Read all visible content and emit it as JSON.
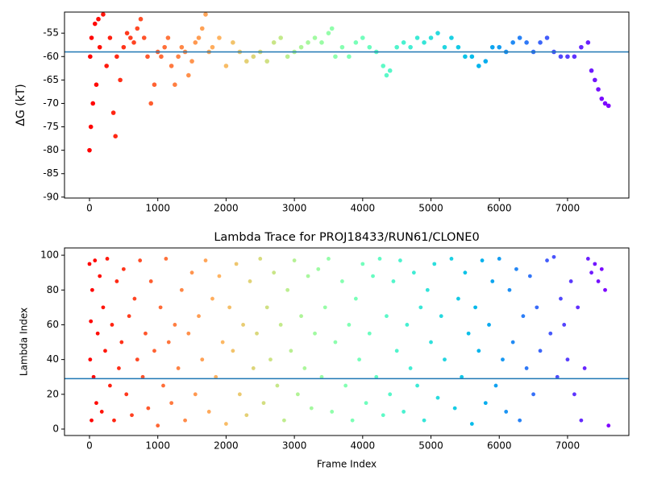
{
  "chart_data": [
    {
      "type": "scatter",
      "ylabel": "ΔG (kT)",
      "colormap": "rainbow_r",
      "hline": -59,
      "hline_color": "#1f77b4",
      "xlim": [
        -366,
        7898
      ],
      "ylim": [
        -90.2,
        -50.5
      ],
      "xticks": [
        0,
        1000,
        2000,
        3000,
        4000,
        5000,
        6000,
        7000
      ],
      "yticks": [
        -90,
        -85,
        -80,
        -75,
        -70,
        -65,
        -60,
        -55
      ],
      "x": [
        0,
        10,
        20,
        30,
        50,
        80,
        100,
        130,
        150,
        200,
        250,
        300,
        350,
        380,
        400,
        450,
        500,
        550,
        600,
        650,
        700,
        750,
        800,
        850,
        900,
        950,
        1000,
        1050,
        1100,
        1150,
        1200,
        1250,
        1300,
        1350,
        1400,
        1450,
        1500,
        1550,
        1600,
        1650,
        1700,
        1750,
        1800,
        1900,
        2000,
        2100,
        2200,
        2300,
        2400,
        2500,
        2600,
        2700,
        2800,
        2900,
        3000,
        3100,
        3200,
        3300,
        3400,
        3500,
        3550,
        3600,
        3700,
        3800,
        3900,
        4000,
        4100,
        4200,
        4300,
        4350,
        4400,
        4500,
        4600,
        4700,
        4800,
        4900,
        5000,
        5100,
        5200,
        5300,
        5400,
        5500,
        5600,
        5700,
        5800,
        5900,
        6000,
        6100,
        6200,
        6300,
        6400,
        6500,
        6600,
        6700,
        6800,
        6900,
        7000,
        7100,
        7200,
        7300,
        7350,
        7400,
        7450,
        7500,
        7550,
        7600
      ],
      "y": [
        -80,
        -60,
        -75,
        -56,
        -70,
        -53,
        -66,
        -52,
        -58,
        -51,
        -62,
        -56,
        -72,
        -77,
        -60,
        -65,
        -58,
        -55,
        -56,
        -57,
        -54,
        -52,
        -56,
        -60,
        -70,
        -66,
        -59,
        -60,
        -58,
        -56,
        -62,
        -66,
        -60,
        -58,
        -59,
        -64,
        -61,
        -57,
        -56,
        -54,
        -51,
        -59,
        -58,
        -56,
        -62,
        -57,
        -59,
        -61,
        -60,
        -59,
        -61,
        -57,
        -56,
        -60,
        -59,
        -58,
        -57,
        -56,
        -57,
        -55,
        -54,
        -60,
        -58,
        -60,
        -57,
        -56,
        -58,
        -59,
        -62,
        -64,
        -63,
        -58,
        -57,
        -58,
        -56,
        -57,
        -56,
        -55,
        -58,
        -56,
        -58,
        -60,
        -60,
        -62,
        -61,
        -58,
        -58,
        -59,
        -57,
        -56,
        -57,
        -59,
        -57,
        -56,
        -59,
        -60,
        -60,
        -60,
        -58,
        -57,
        -63,
        -65,
        -67,
        -69,
        -70,
        -70.5
      ]
    },
    {
      "type": "scatter",
      "title": "Lambda Trace for PROJ18433/RUN61/CLONE0",
      "xlabel": "Frame Index",
      "ylabel": "Lambda Index",
      "colormap": "rainbow_r",
      "hline": 29,
      "hline_color": "#1f77b4",
      "xlim": [
        -366,
        7898
      ],
      "ylim": [
        -3.7,
        104.2
      ],
      "xticks": [
        0,
        1000,
        2000,
        3000,
        4000,
        5000,
        6000,
        7000
      ],
      "yticks": [
        0,
        20,
        40,
        60,
        80,
        100
      ],
      "x": [
        0,
        10,
        20,
        30,
        40,
        60,
        80,
        100,
        120,
        150,
        180,
        200,
        230,
        260,
        300,
        330,
        360,
        400,
        430,
        470,
        500,
        540,
        580,
        620,
        660,
        700,
        740,
        780,
        820,
        860,
        900,
        950,
        1000,
        1040,
        1080,
        1120,
        1160,
        1200,
        1250,
        1300,
        1350,
        1400,
        1450,
        1500,
        1550,
        1600,
        1650,
        1700,
        1750,
        1800,
        1850,
        1900,
        1950,
        2000,
        2050,
        2100,
        2150,
        2200,
        2250,
        2300,
        2350,
        2400,
        2450,
        2500,
        2550,
        2600,
        2650,
        2700,
        2750,
        2800,
        2850,
        2900,
        2950,
        3000,
        3050,
        3100,
        3150,
        3200,
        3250,
        3300,
        3350,
        3400,
        3450,
        3500,
        3550,
        3600,
        3700,
        3750,
        3800,
        3850,
        3900,
        3950,
        4000,
        4050,
        4100,
        4150,
        4200,
        4250,
        4300,
        4350,
        4400,
        4450,
        4500,
        4550,
        4600,
        4650,
        4700,
        4750,
        4800,
        4850,
        4900,
        4950,
        5000,
        5050,
        5100,
        5150,
        5200,
        5300,
        5350,
        5400,
        5450,
        5500,
        5550,
        5600,
        5650,
        5700,
        5750,
        5800,
        5850,
        5900,
        5950,
        6000,
        6050,
        6100,
        6150,
        6200,
        6250,
        6300,
        6350,
        6400,
        6450,
        6500,
        6550,
        6600,
        6700,
        6750,
        6800,
        6850,
        6900,
        6950,
        7000,
        7050,
        7100,
        7150,
        7200,
        7250,
        7300,
        7350,
        7400,
        7450,
        7500,
        7550,
        7600
      ],
      "y": [
        95,
        40,
        62,
        5,
        80,
        30,
        97,
        15,
        55,
        88,
        10,
        70,
        45,
        98,
        25,
        60,
        5,
        85,
        35,
        50,
        92,
        20,
        65,
        8,
        75,
        40,
        97,
        30,
        55,
        12,
        85,
        45,
        2,
        70,
        25,
        98,
        50,
        15,
        60,
        35,
        80,
        5,
        55,
        90,
        20,
        65,
        40,
        97,
        10,
        75,
        30,
        88,
        50,
        3,
        70,
        45,
        95,
        20,
        60,
        8,
        85,
        35,
        55,
        98,
        15,
        70,
        40,
        90,
        25,
        60,
        5,
        80,
        45,
        97,
        20,
        65,
        35,
        88,
        12,
        55,
        92,
        30,
        70,
        98,
        10,
        50,
        85,
        25,
        60,
        5,
        75,
        40,
        95,
        15,
        55,
        88,
        30,
        98,
        8,
        65,
        20,
        85,
        45,
        97,
        10,
        60,
        35,
        90,
        25,
        70,
        5,
        80,
        50,
        95,
        18,
        65,
        40,
        98,
        12,
        75,
        30,
        90,
        55,
        3,
        70,
        45,
        97,
        15,
        60,
        85,
        25,
        98,
        40,
        10,
        80,
        50,
        92,
        5,
        65,
        35,
        88,
        20,
        70,
        45,
        97,
        55,
        99,
        30,
        75,
        60,
        40,
        85,
        20,
        70,
        5,
        35,
        98,
        90,
        95,
        85,
        92,
        80,
        2
      ]
    }
  ]
}
